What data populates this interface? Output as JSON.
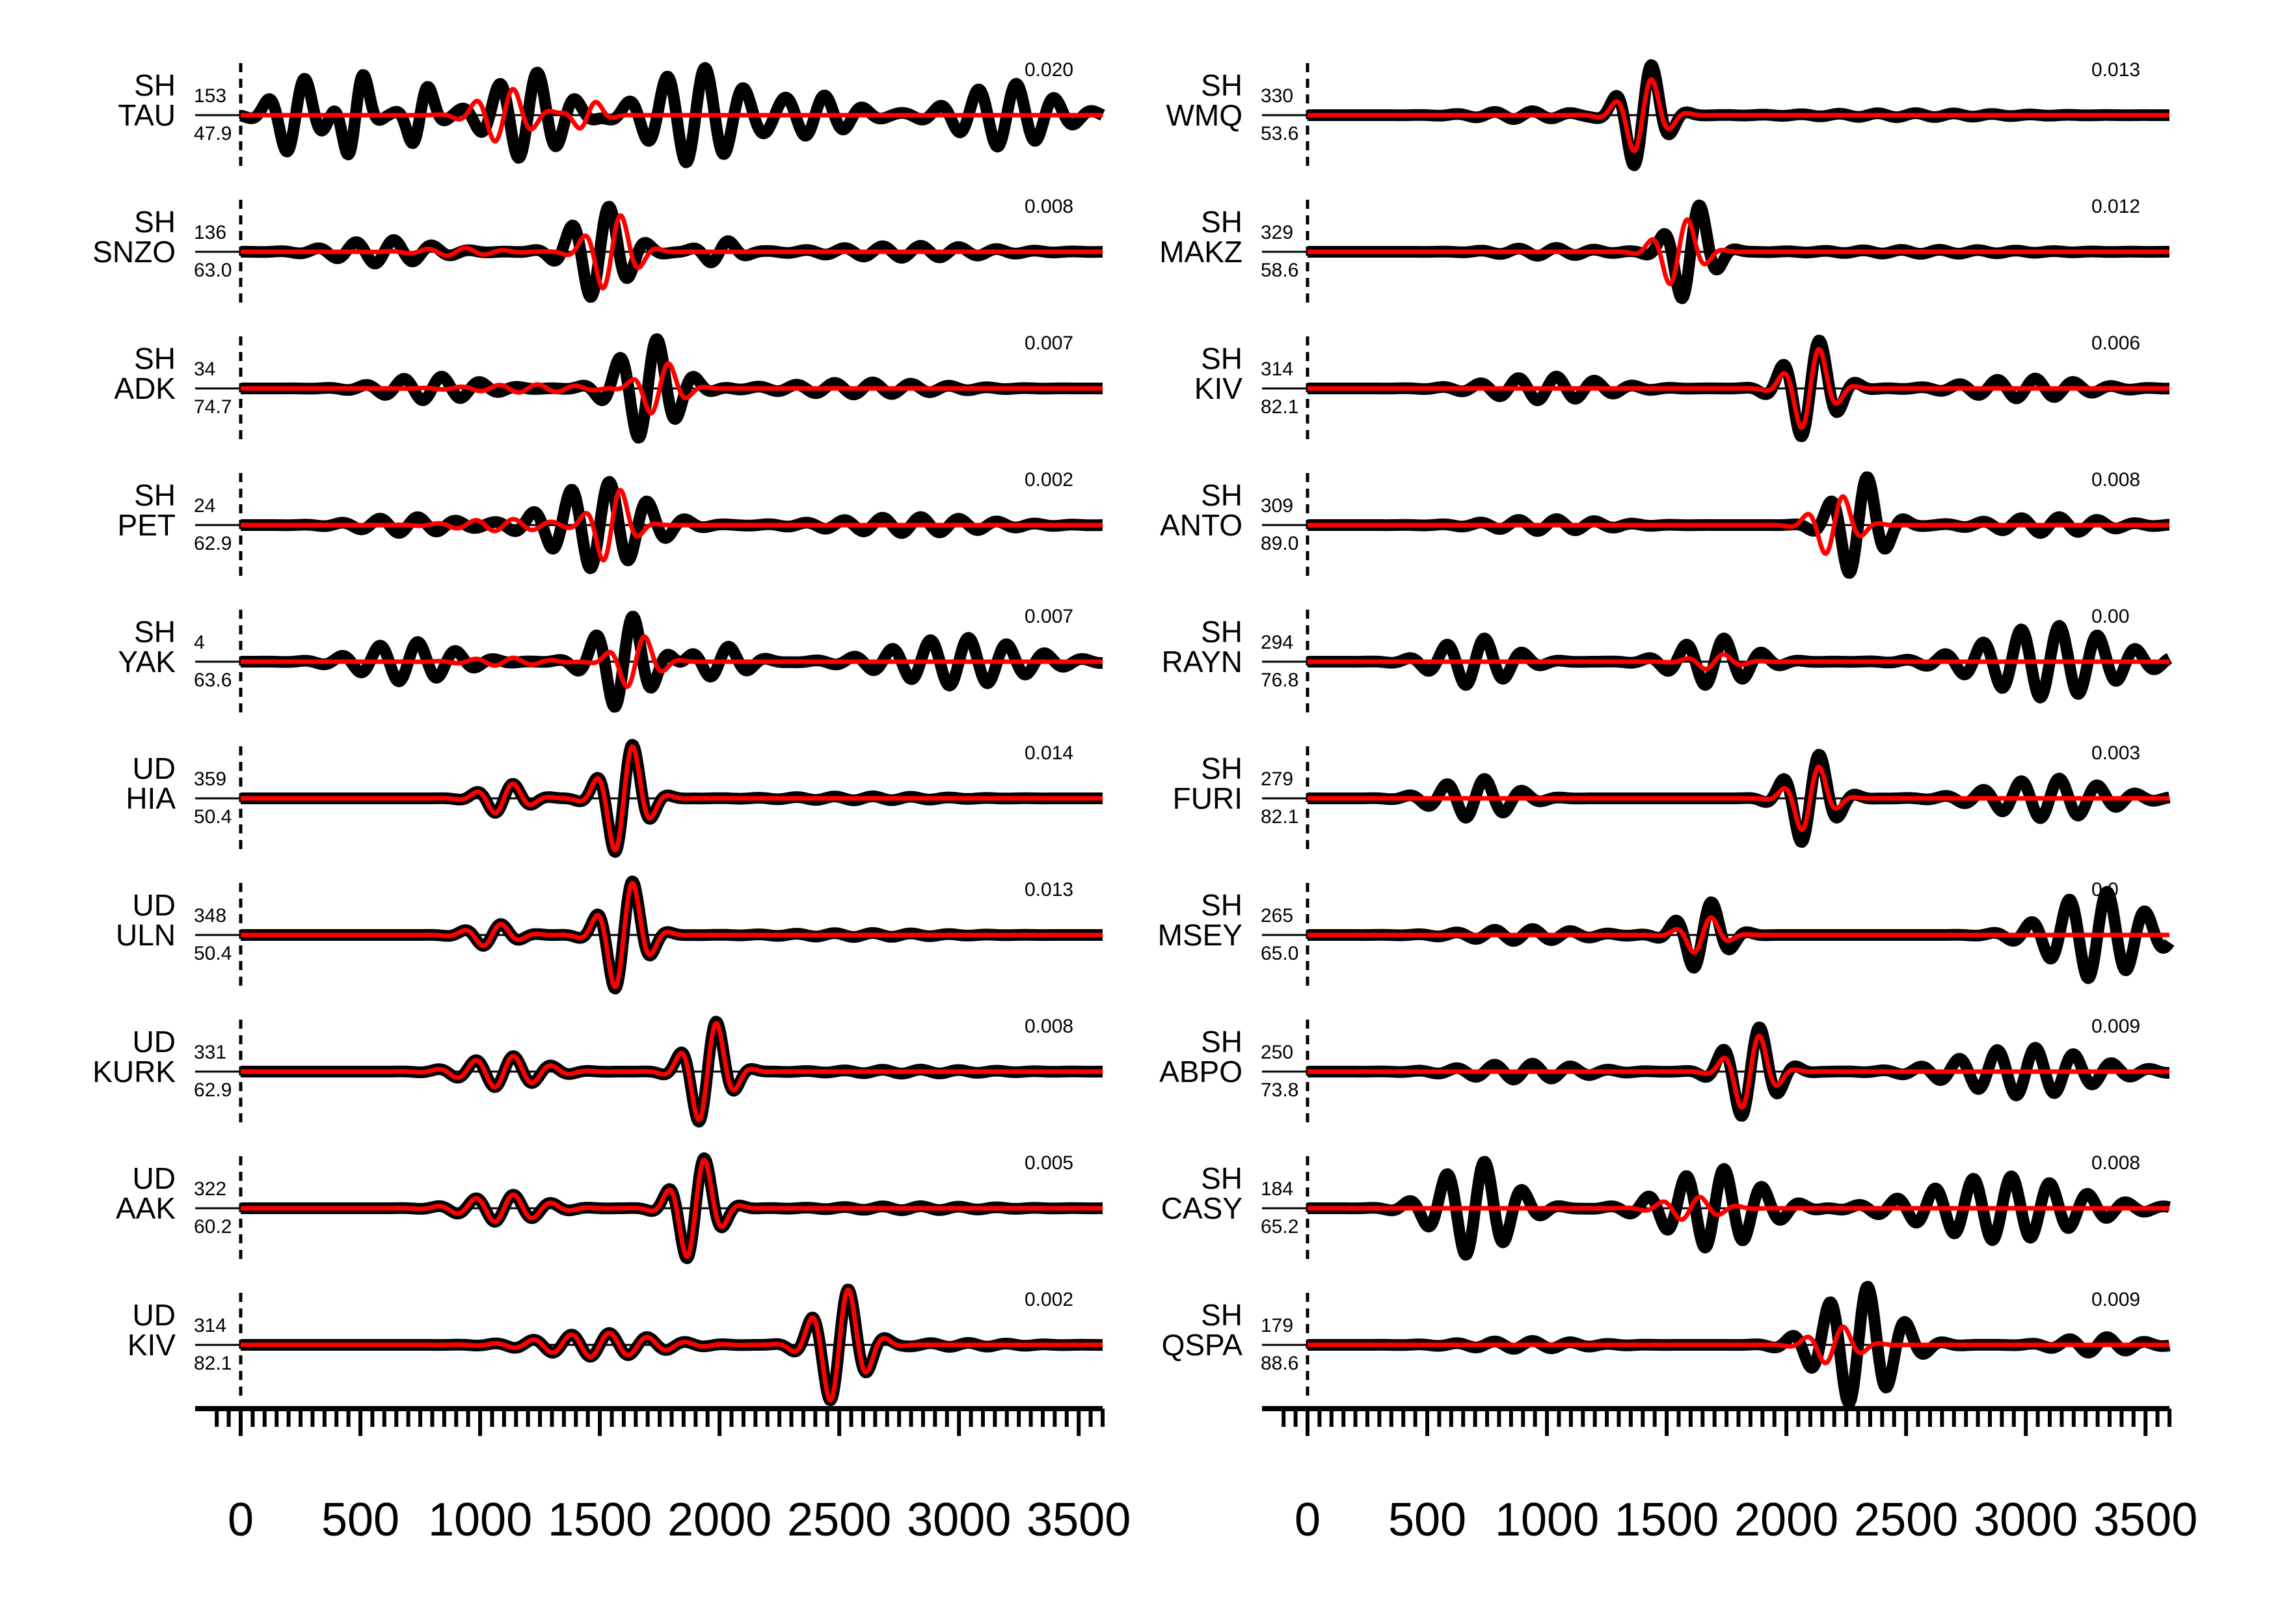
{
  "chart_data": [
    {
      "type": "line",
      "xlim": [
        0,
        3600
      ],
      "xticks": [
        0,
        500,
        1000,
        1500,
        2000,
        2500,
        3000,
        3500
      ],
      "series_legend": {
        "observed": "black thick",
        "synthetic": "red"
      },
      "stations": [
        {
          "component": "SH",
          "station": "TAU",
          "azimuth": "153",
          "distance": "47.9",
          "amplitude": "0.020",
          "obs_packets": [
            [
              230,
              120,
              1.0
            ],
            [
              480,
              70,
              1.3
            ],
            [
              750,
              70,
              0.9
            ],
            [
              1200,
              200,
              1.1
            ],
            [
              1900,
              250,
              1.2
            ],
            [
              2400,
              200,
              0.5
            ],
            [
              3200,
              250,
              0.8
            ]
          ],
          "syn_packets": [
            [
              1100,
              140,
              0.7
            ],
            [
              1450,
              80,
              0.4
            ]
          ]
        },
        {
          "component": "SH",
          "station": "SNZO",
          "azimuth": "136",
          "distance": "63.0",
          "amplitude": "0.008",
          "obs_packets": [
            [
              600,
              250,
              0.3
            ],
            [
              1500,
              150,
              1.2
            ],
            [
              2000,
              100,
              0.3
            ],
            [
              2800,
              400,
              0.15
            ]
          ],
          "syn_packets": [
            [
              1550,
              120,
              1.0
            ],
            [
              900,
              200,
              0.1
            ]
          ]
        },
        {
          "component": "SH",
          "station": "ADK",
          "azimuth": "34",
          "distance": "74.7",
          "amplitude": "0.007",
          "obs_packets": [
            [
              800,
              250,
              0.3
            ],
            [
              1700,
              160,
              1.3
            ],
            [
              2600,
              400,
              0.15
            ]
          ],
          "syn_packets": [
            [
              1750,
              110,
              0.7
            ],
            [
              1200,
              300,
              0.1
            ]
          ]
        },
        {
          "component": "SH",
          "station": "PET",
          "azimuth": "24",
          "distance": "62.9",
          "amplitude": "0.002",
          "obs_packets": [
            [
              700,
              250,
              0.2
            ],
            [
              1500,
              250,
              1.1
            ],
            [
              2800,
              400,
              0.2
            ]
          ],
          "syn_packets": [
            [
              1550,
              100,
              1.0
            ],
            [
              1100,
              250,
              0.15
            ]
          ]
        },
        {
          "component": "SH",
          "station": "YAK",
          "azimuth": "4",
          "distance": "63.6",
          "amplitude": "0.007",
          "obs_packets": [
            [
              700,
              250,
              0.5
            ],
            [
              1600,
              150,
              1.2
            ],
            [
              2000,
              150,
              0.4
            ],
            [
              3000,
              350,
              0.6
            ]
          ],
          "syn_packets": [
            [
              1650,
              110,
              0.7
            ],
            [
              1100,
              200,
              0.1
            ]
          ]
        },
        {
          "component": "UD",
          "station": "HIA",
          "azimuth": "359",
          "distance": "50.4",
          "amplitude": "0.014",
          "obs_packets": [
            [
              1100,
              120,
              0.4
            ],
            [
              1600,
              110,
              1.5
            ],
            [
              2600,
              400,
              0.05
            ]
          ],
          "syn_packets": [
            [
              1100,
              120,
              0.4
            ],
            [
              1600,
              110,
              1.45
            ]
          ]
        },
        {
          "component": "UD",
          "station": "ULN",
          "azimuth": "348",
          "distance": "50.4",
          "amplitude": "0.013",
          "obs_packets": [
            [
              1050,
              120,
              0.3
            ],
            [
              1600,
              110,
              1.5
            ],
            [
              2600,
              400,
              0.05
            ]
          ],
          "syn_packets": [
            [
              1050,
              120,
              0.3
            ],
            [
              1600,
              110,
              1.45
            ]
          ]
        },
        {
          "component": "UD",
          "station": "KURK",
          "azimuth": "331",
          "distance": "62.9",
          "amplitude": "0.008",
          "obs_packets": [
            [
              1100,
              200,
              0.4
            ],
            [
              1950,
              110,
              1.4
            ],
            [
              2800,
              400,
              0.05
            ]
          ],
          "syn_packets": [
            [
              1100,
              200,
              0.4
            ],
            [
              1950,
              110,
              1.35
            ]
          ]
        },
        {
          "component": "UD",
          "station": "AAK",
          "azimuth": "322",
          "distance": "60.2",
          "amplitude": "0.005",
          "obs_packets": [
            [
              1100,
              200,
              0.35
            ],
            [
              1900,
              110,
              1.4
            ],
            [
              2800,
              400,
              0.05
            ]
          ],
          "syn_packets": [
            [
              1100,
              200,
              0.35
            ],
            [
              1900,
              110,
              1.35
            ]
          ]
        },
        {
          "component": "UD",
          "station": "KIV",
          "azimuth": "314",
          "distance": "82.1",
          "amplitude": "0.002",
          "obs_packets": [
            [
              1500,
              300,
              0.3
            ],
            [
              2500,
              130,
              1.5
            ],
            [
              3000,
              300,
              0.05
            ]
          ],
          "syn_packets": [
            [
              1500,
              300,
              0.3
            ],
            [
              2500,
              130,
              1.5
            ]
          ]
        },
        {
          "component": "SH",
          "station": "WMQ",
          "azimuth": "330",
          "distance": "53.6",
          "amplitude": "0.013",
          "obs_packets": [
            [
              1400,
              110,
              1.4
            ],
            [
              900,
              250,
              0.1
            ],
            [
              2500,
              500,
              0.05
            ]
          ],
          "syn_packets": [
            [
              1400,
              110,
              1.0
            ]
          ]
        },
        {
          "component": "SH",
          "station": "MAKZ",
          "azimuth": "329",
          "distance": "58.6",
          "amplitude": "0.012",
          "obs_packets": [
            [
              1600,
              110,
              1.3
            ],
            [
              1000,
              250,
              0.1
            ],
            [
              2600,
              500,
              0.05
            ]
          ],
          "syn_packets": [
            [
              1550,
              110,
              0.9
            ]
          ]
        },
        {
          "component": "SH",
          "station": "KIV",
          "azimuth": "314",
          "distance": "82.1",
          "amplitude": "0.006",
          "obs_packets": [
            [
              1000,
              300,
              0.3
            ],
            [
              2100,
              130,
              1.3
            ],
            [
              3000,
              300,
              0.25
            ]
          ],
          "syn_packets": [
            [
              2100,
              110,
              1.1
            ]
          ]
        },
        {
          "component": "SH",
          "station": "ANTO",
          "azimuth": "309",
          "distance": "89.0",
          "amplitude": "0.008",
          "obs_packets": [
            [
              1000,
              300,
              0.15
            ],
            [
              2300,
              130,
              1.3
            ],
            [
              3100,
              300,
              0.2
            ]
          ],
          "syn_packets": [
            [
              2200,
              110,
              0.8
            ]
          ]
        },
        {
          "component": "SH",
          "station": "RAYN",
          "azimuth": "294",
          "distance": "76.8",
          "amplitude": "0.00",
          "obs_packets": [
            [
              700,
              200,
              0.6
            ],
            [
              1700,
              200,
              0.6
            ],
            [
              3100,
              350,
              0.9
            ]
          ],
          "syn_packets": [
            [
              1700,
              120,
              0.2
            ]
          ]
        },
        {
          "component": "SH",
          "station": "FURI",
          "azimuth": "279",
          "distance": "82.1",
          "amplitude": "0.003",
          "obs_packets": [
            [
              700,
              200,
              0.5
            ],
            [
              2100,
              120,
              1.2
            ],
            [
              3100,
              300,
              0.5
            ]
          ],
          "syn_packets": [
            [
              2100,
              100,
              0.9
            ]
          ]
        },
        {
          "component": "SH",
          "station": "MSEY",
          "azimuth": "265",
          "distance": "65.0",
          "amplitude": "0.0",
          "obs_packets": [
            [
              900,
              300,
              0.15
            ],
            [
              1650,
              120,
              0.9
            ],
            [
              3300,
              250,
              1.1
            ]
          ],
          "syn_packets": [
            [
              1650,
              100,
              0.5
            ]
          ]
        },
        {
          "component": "SH",
          "station": "ABPO",
          "azimuth": "250",
          "distance": "73.8",
          "amplitude": "0.009",
          "obs_packets": [
            [
              900,
              300,
              0.2
            ],
            [
              1850,
              130,
              1.2
            ],
            [
              3000,
              350,
              0.6
            ]
          ],
          "syn_packets": [
            [
              1850,
              110,
              1.0
            ]
          ]
        },
        {
          "component": "SH",
          "station": "CASY",
          "azimuth": "184",
          "distance": "65.2",
          "amplitude": "0.008",
          "obs_packets": [
            [
              700,
              200,
              1.2
            ],
            [
              1700,
              250,
              1.0
            ],
            [
              2900,
              400,
              0.8
            ]
          ],
          "syn_packets": [
            [
              1600,
              150,
              0.3
            ]
          ]
        },
        {
          "component": "SH",
          "station": "QSPA",
          "azimuth": "179",
          "distance": "88.6",
          "amplitude": "0.009",
          "obs_packets": [
            [
              2300,
              200,
              1.5
            ],
            [
              900,
              300,
              0.1
            ],
            [
              3300,
              200,
              0.2
            ]
          ],
          "syn_packets": [
            [
              2200,
              120,
              0.5
            ]
          ]
        }
      ]
    }
  ],
  "axis": {
    "tick_labels": [
      "0",
      "500",
      "1000",
      "1500",
      "2000",
      "2500",
      "3000",
      "3500"
    ]
  },
  "colors": {
    "observed": "#000000",
    "synthetic": "#ff0000",
    "zero_line": "#000000"
  }
}
